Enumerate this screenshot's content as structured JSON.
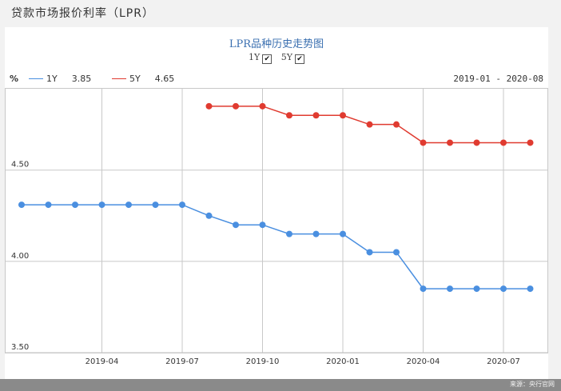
{
  "page_title": "贷款市场报价利率（LPR）",
  "source": "来源：央行官网",
  "colors": {
    "s1y": "#4a8fe0",
    "s5y": "#e03b30",
    "grid": "#c8c8c8"
  },
  "chart_data": {
    "type": "line",
    "title": "LPR品种历史走势图",
    "toggles": [
      {
        "label": "1Y",
        "checked": true
      },
      {
        "label": "5Y",
        "checked": true
      }
    ],
    "unit": "%",
    "date_range": "2019-01 - 2020-08",
    "ylim": [
      3.5,
      4.95
    ],
    "yticks": [
      {
        "value": 3.5,
        "label": "3.50"
      },
      {
        "value": 4.0,
        "label": "4.00"
      },
      {
        "value": 4.5,
        "label": "4.50"
      }
    ],
    "xrange": [
      0,
      19
    ],
    "xticks": [
      {
        "index": 3,
        "label": "2019-04"
      },
      {
        "index": 6,
        "label": "2019-07"
      },
      {
        "index": 9,
        "label": "2019-10"
      },
      {
        "index": 12,
        "label": "2020-01"
      },
      {
        "index": 15,
        "label": "2020-04"
      },
      {
        "index": 18,
        "label": "2020-07"
      }
    ],
    "series": [
      {
        "name": "1Y",
        "latest": "3.85",
        "points": [
          [
            0,
            4.31
          ],
          [
            1,
            4.31
          ],
          [
            2,
            4.31
          ],
          [
            3,
            4.31
          ],
          [
            4,
            4.31
          ],
          [
            5,
            4.31
          ],
          [
            6,
            4.31
          ],
          [
            7,
            4.25
          ],
          [
            8,
            4.2
          ],
          [
            9,
            4.2
          ],
          [
            10,
            4.15
          ],
          [
            11,
            4.15
          ],
          [
            12,
            4.15
          ],
          [
            13,
            4.05
          ],
          [
            14,
            4.05
          ],
          [
            15,
            3.85
          ],
          [
            16,
            3.85
          ],
          [
            17,
            3.85
          ],
          [
            18,
            3.85
          ],
          [
            19,
            3.85
          ]
        ]
      },
      {
        "name": "5Y",
        "latest": "4.65",
        "points": [
          [
            7,
            4.85
          ],
          [
            8,
            4.85
          ],
          [
            9,
            4.85
          ],
          [
            10,
            4.8
          ],
          [
            11,
            4.8
          ],
          [
            12,
            4.8
          ],
          [
            13,
            4.75
          ],
          [
            14,
            4.75
          ],
          [
            15,
            4.65
          ],
          [
            16,
            4.65
          ],
          [
            17,
            4.65
          ],
          [
            18,
            4.65
          ],
          [
            19,
            4.65
          ]
        ]
      }
    ]
  }
}
